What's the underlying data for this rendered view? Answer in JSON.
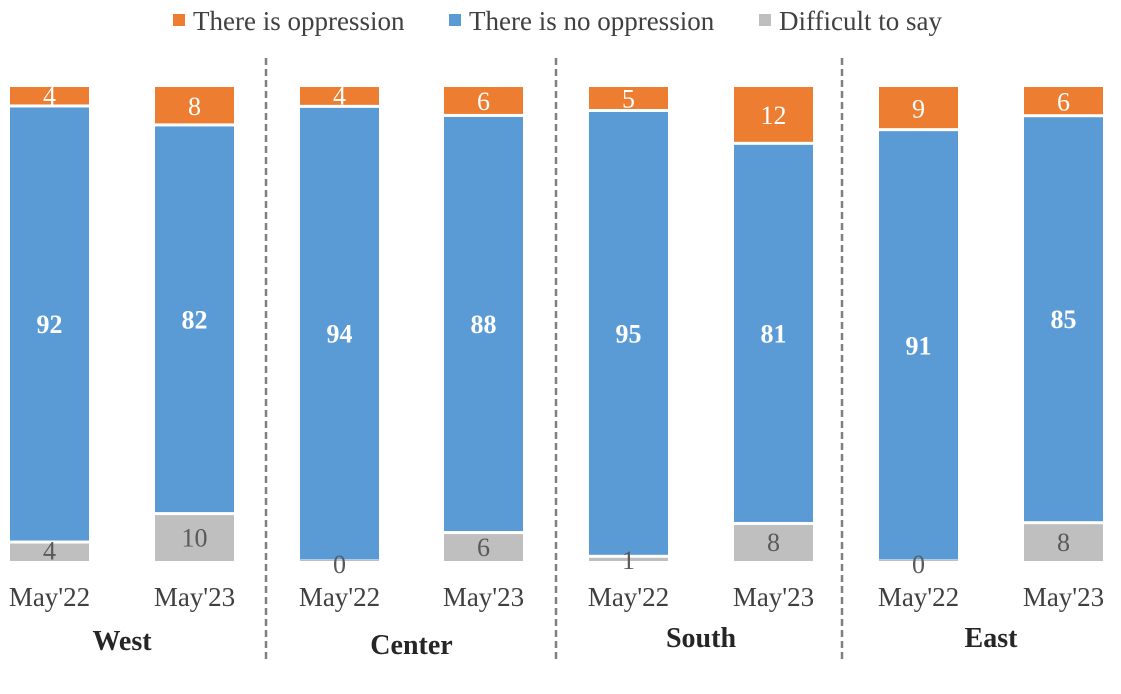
{
  "chart_data": {
    "type": "bar",
    "stacked": true,
    "title": "",
    "xlabel": "",
    "ylabel": "",
    "ylim": [
      0,
      100
    ],
    "grid": false,
    "legend_position": "top",
    "legend": [
      {
        "name": "There is oppression",
        "color": "#ED7D31"
      },
      {
        "name": "There is no oppression",
        "color": "#5B9BD5"
      },
      {
        "name": "Difficult to say",
        "color": "#BFBFBF"
      }
    ],
    "groups": [
      {
        "name": "West",
        "categories": [
          "May'22",
          "May'23"
        ]
      },
      {
        "name": "Center",
        "categories": [
          "May'22",
          "May'23"
        ]
      },
      {
        "name": "South",
        "categories": [
          "May'22",
          "May'23"
        ]
      },
      {
        "name": "East",
        "categories": [
          "May'22",
          "May'23"
        ]
      }
    ],
    "categories": [
      "May'22",
      "May'23",
      "May'22",
      "May'23",
      "May'22",
      "May'23",
      "May'22",
      "May'23"
    ],
    "series": [
      {
        "name": "There is oppression",
        "color": "#ED7D31",
        "label_color": "#FFFFFF",
        "values": [
          4,
          8,
          4,
          6,
          5,
          12,
          9,
          6
        ]
      },
      {
        "name": "There is no oppression",
        "color": "#5B9BD5",
        "label_color": "#FFFFFF",
        "label_bold": true,
        "values": [
          92,
          82,
          94,
          88,
          95,
          81,
          91,
          85
        ]
      },
      {
        "name": "Difficult to say",
        "color": "#BFBFBF",
        "label_color": "#595959",
        "values": [
          4,
          10,
          0,
          6,
          1,
          8,
          0,
          8
        ]
      }
    ]
  }
}
